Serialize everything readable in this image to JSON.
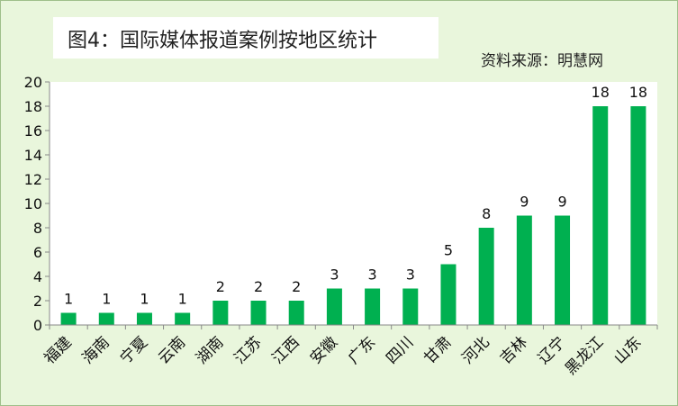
{
  "header": {
    "title": "图4：国际媒体报道案例按地区统计",
    "source": "资料来源：明慧网"
  },
  "chart_data": {
    "type": "bar",
    "title": "图4：国际媒体报道案例按地区统计",
    "categories": [
      "福建",
      "海南",
      "宁夏",
      "云南",
      "湖南",
      "江苏",
      "江西",
      "安徽",
      "广东",
      "四川",
      "甘肃",
      "河北",
      "吉林",
      "辽宁",
      "黑龙江",
      "山东"
    ],
    "values": [
      1,
      1,
      1,
      1,
      2,
      2,
      2,
      3,
      3,
      3,
      5,
      8,
      9,
      9,
      18,
      18
    ],
    "xlabel": "",
    "ylabel": "",
    "ylim": [
      0,
      20
    ],
    "yticks": [
      0,
      2,
      4,
      6,
      8,
      10,
      12,
      14,
      16,
      18,
      20
    ],
    "data_labels": true,
    "grid": false,
    "legend": "none",
    "colors": {
      "bar": "#00b050",
      "plot_background": "#ffffff",
      "chart_background": "#e9f6dc"
    }
  }
}
